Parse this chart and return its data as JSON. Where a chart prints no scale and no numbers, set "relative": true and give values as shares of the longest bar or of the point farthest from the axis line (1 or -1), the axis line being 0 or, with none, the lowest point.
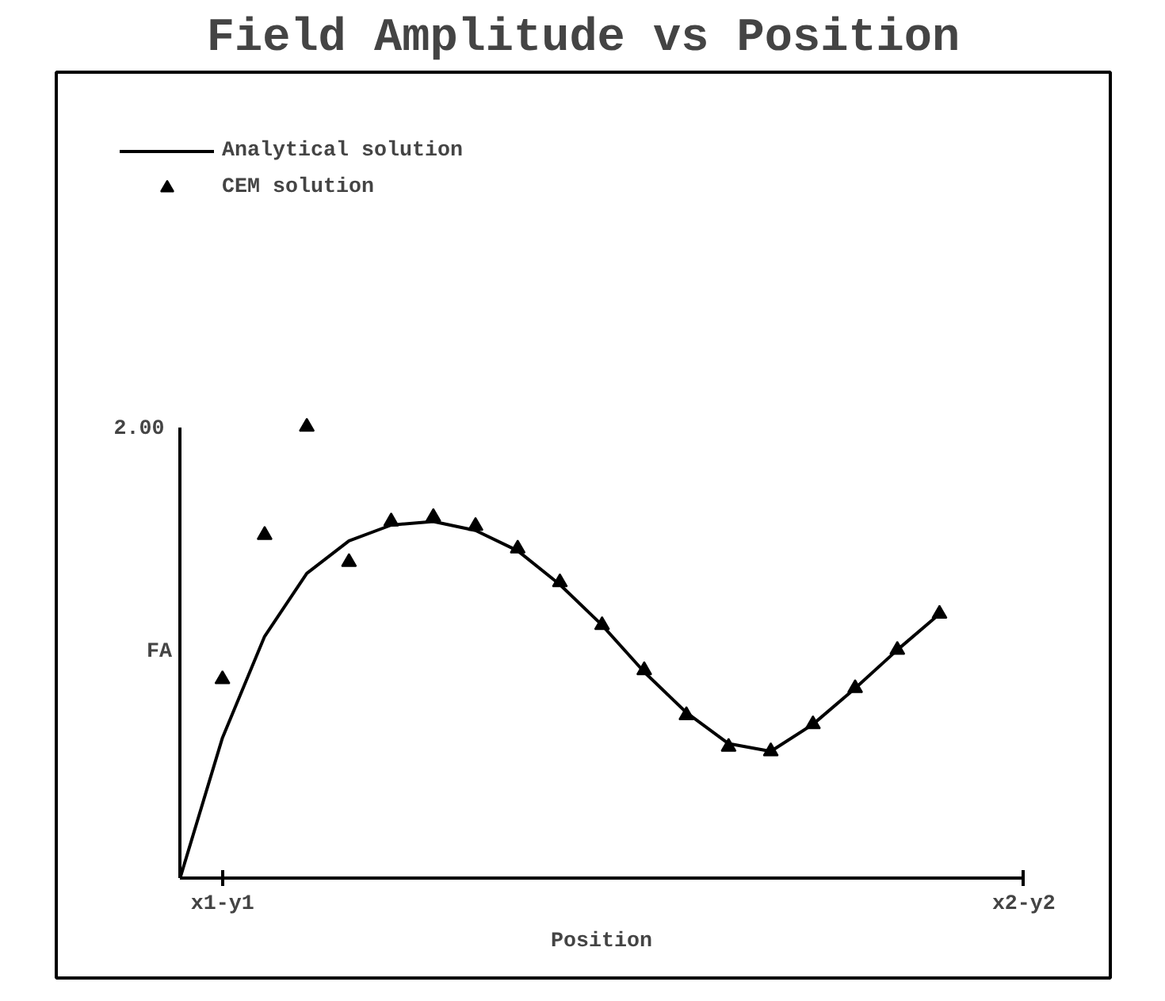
{
  "chart_data": {
    "type": "line",
    "title": "Field Amplitude vs Position",
    "xlabel": "Position",
    "ylabel": "FA",
    "relative": true,
    "categories": [
      null,
      "x1-y1",
      null,
      null,
      null,
      null,
      null,
      null,
      null,
      null,
      null,
      null,
      null,
      null,
      null,
      null,
      null,
      null,
      null,
      null,
      "x2-y2"
    ],
    "annotations": [
      "2.00"
    ],
    "legend": "top left",
    "grid": false,
    "series": [
      {
        "name": "Analytical solution",
        "line_style": "solid",
        "color": "#000000",
        "values": [
          0,
          0.31,
          0.535,
          0.675,
          0.747,
          0.782,
          0.79,
          0.77,
          0.725,
          0.65,
          0.56,
          0.456,
          0.366,
          0.297,
          0.28,
          0.34,
          0.42,
          0.505,
          0.585,
          null,
          null
        ]
      },
      {
        "name": "CEM solution",
        "type": "scatter",
        "marker": "triangle",
        "color": "#000000",
        "values": [
          null,
          0.44,
          0.76,
          1.0,
          0.7,
          0.79,
          0.8,
          0.78,
          0.73,
          0.655,
          0.56,
          0.46,
          0.36,
          0.29,
          0.28,
          0.34,
          0.42,
          0.505,
          0.585,
          null,
          null
        ]
      }
    ]
  }
}
